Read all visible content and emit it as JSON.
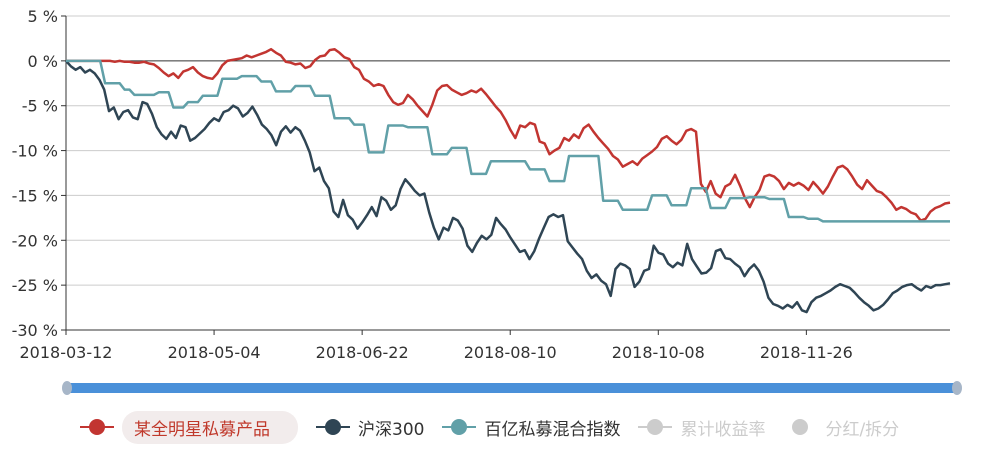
{
  "chart_data": {
    "type": "line",
    "y_tick_labels": [
      "5 %",
      "0 %",
      "-5 %",
      "-10 %",
      "-15 %",
      "-20 %",
      "-25 %",
      "-30 %"
    ],
    "y_ticks": [
      5,
      0,
      -5,
      -10,
      -15,
      -20,
      -25,
      -30
    ],
    "ylim": [
      -30,
      5
    ],
    "x_tick_labels": [
      "2018-03-12",
      "2018-05-04",
      "2018-06-22",
      "2018-08-10",
      "2018-10-08",
      "2018-11-26"
    ],
    "grid": true,
    "series": [
      {
        "name": "某全明星私募产品",
        "color": "#c23531",
        "values": [
          0,
          0,
          0,
          0,
          0,
          0,
          0,
          0,
          0,
          0,
          -0.1,
          0,
          -0.1,
          -0.1,
          -0.2,
          -0.2,
          -0.1,
          -0.3,
          -0.4,
          -0.8,
          -1.3,
          -1.7,
          -1.4,
          -1.9,
          -1.2,
          -1.0,
          -0.7,
          -1.3,
          -1.7,
          -1.9,
          -2.0,
          -1.4,
          -0.5,
          0,
          0.1,
          0.2,
          0.3,
          0.6,
          0.4,
          0.6,
          0.8,
          1.0,
          1.3,
          0.9,
          0.6,
          -0.1,
          -0.2,
          -0.4,
          -0.3,
          -0.8,
          -0.6,
          0.1,
          0.5,
          0.6,
          1.2,
          1.3,
          0.9,
          0.4,
          0.2,
          -0.7,
          -1.0,
          -2.0,
          -2.3,
          -2.8,
          -2.6,
          -2.8,
          -3.8,
          -4.6,
          -4.9,
          -4.7,
          -3.8,
          -4.3,
          -5.0,
          -5.6,
          -6.2,
          -4.9,
          -3.3,
          -2.8,
          -2.7,
          -3.2,
          -3.5,
          -3.8,
          -3.6,
          -3.3,
          -3.5,
          -3.1,
          -3.7,
          -4.4,
          -5.1,
          -5.7,
          -6.6,
          -7.7,
          -8.6,
          -7.2,
          -7.4,
          -6.9,
          -7.1,
          -9.0,
          -9.2,
          -10.4,
          -10.0,
          -9.7,
          -8.6,
          -8.9,
          -8.2,
          -8.6,
          -7.5,
          -7.1,
          -7.9,
          -8.6,
          -9.2,
          -9.8,
          -10.6,
          -11.0,
          -11.8,
          -11.5,
          -11.2,
          -11.6,
          -10.9,
          -10.5,
          -10.1,
          -9.6,
          -8.7,
          -8.4,
          -8.9,
          -9.3,
          -8.8,
          -7.8,
          -7.6,
          -7.9,
          -13.7,
          -14.6,
          -13.4,
          -14.8,
          -15.2,
          -14.0,
          -13.7,
          -12.7,
          -13.9,
          -15.3,
          -16.3,
          -15.2,
          -14.4,
          -12.9,
          -12.7,
          -12.9,
          -13.4,
          -14.3,
          -13.6,
          -13.9,
          -13.6,
          -13.9,
          -14.4,
          -13.5,
          -14.1,
          -14.8,
          -14.0,
          -12.9,
          -11.9,
          -11.7,
          -12.1,
          -12.9,
          -13.8,
          -14.3,
          -13.3,
          -13.9,
          -14.5,
          -14.7,
          -15.2,
          -15.8,
          -16.6,
          -16.3,
          -16.5,
          -16.9,
          -17.1,
          -17.8,
          -17.6,
          -16.8,
          -16.4,
          -16.2,
          -15.9,
          -15.8
        ]
      },
      {
        "name": "沪深300",
        "color": "#2f4554",
        "values": [
          0,
          -0.6,
          -1.0,
          -0.7,
          -1.3,
          -1.0,
          -1.4,
          -2.1,
          -3.2,
          -5.6,
          -5.2,
          -6.5,
          -5.7,
          -5.5,
          -6.3,
          -6.5,
          -4.6,
          -4.8,
          -5.9,
          -7.4,
          -8.2,
          -8.7,
          -7.9,
          -8.6,
          -7.2,
          -7.4,
          -8.9,
          -8.6,
          -8.1,
          -7.6,
          -6.9,
          -6.4,
          -6.7,
          -5.7,
          -5.5,
          -5.0,
          -5.3,
          -6.2,
          -5.8,
          -5.1,
          -6.0,
          -7.1,
          -7.6,
          -8.3,
          -9.4,
          -7.9,
          -7.3,
          -8.0,
          -7.4,
          -7.8,
          -8.9,
          -10.2,
          -12.3,
          -11.9,
          -13.4,
          -14.2,
          -16.8,
          -17.4,
          -15.5,
          -17.2,
          -17.7,
          -18.7,
          -18.0,
          -17.2,
          -16.3,
          -17.3,
          -15.2,
          -15.6,
          -16.6,
          -16.1,
          -14.3,
          -13.2,
          -13.8,
          -14.5,
          -15.0,
          -14.8,
          -16.9,
          -18.6,
          -19.9,
          -18.6,
          -18.9,
          -17.5,
          -17.8,
          -18.7,
          -20.6,
          -21.3,
          -20.3,
          -19.5,
          -19.9,
          -19.4,
          -17.5,
          -18.2,
          -18.8,
          -19.7,
          -20.5,
          -21.3,
          -21.1,
          -22.1,
          -21.2,
          -19.8,
          -18.6,
          -17.4,
          -17.1,
          -17.4,
          -17.2,
          -20.1,
          -20.8,
          -21.5,
          -22.1,
          -23.4,
          -24.2,
          -23.8,
          -24.5,
          -24.9,
          -26.2,
          -23.2,
          -22.6,
          -22.8,
          -23.2,
          -25.2,
          -24.6,
          -23.4,
          -23.2,
          -20.6,
          -21.4,
          -21.6,
          -22.6,
          -23.0,
          -22.5,
          -22.8,
          -20.4,
          -22.1,
          -22.9,
          -23.7,
          -23.6,
          -23.1,
          -21.2,
          -21.0,
          -22.0,
          -22.1,
          -22.6,
          -23.0,
          -24.0,
          -23.2,
          -22.7,
          -23.4,
          -24.6,
          -26.4,
          -27.1,
          -27.3,
          -27.6,
          -27.2,
          -27.5,
          -26.9,
          -27.8,
          -28.0,
          -26.9,
          -26.4,
          -26.2,
          -25.9,
          -25.6,
          -25.2,
          -24.9,
          -25.1,
          -25.3,
          -25.8,
          -26.4,
          -26.9,
          -27.3,
          -27.8,
          -27.6,
          -27.2,
          -26.6,
          -25.9,
          -25.6,
          -25.2,
          -25.0,
          -24.9,
          -25.3,
          -25.6,
          -25.1,
          -25.3,
          -25.0,
          -25.0,
          -24.9,
          -24.8
        ]
      },
      {
        "name": "百亿私募混合指数",
        "color": "#61a0a8",
        "values": [
          0,
          0,
          0,
          0,
          0,
          0,
          0,
          0,
          -2.5,
          -2.5,
          -2.5,
          -2.5,
          -3.2,
          -3.2,
          -3.8,
          -3.8,
          -3.8,
          -3.8,
          -3.8,
          -3.5,
          -3.5,
          -3.5,
          -5.2,
          -5.2,
          -5.2,
          -4.6,
          -4.6,
          -4.6,
          -3.9,
          -3.9,
          -3.9,
          -3.9,
          -2.0,
          -2.0,
          -2.0,
          -2.0,
          -1.7,
          -1.7,
          -1.7,
          -1.7,
          -2.3,
          -2.3,
          -2.3,
          -3.4,
          -3.4,
          -3.4,
          -3.4,
          -2.8,
          -2.8,
          -2.8,
          -2.8,
          -3.9,
          -3.9,
          -3.9,
          -3.9,
          -6.4,
          -6.4,
          -6.4,
          -6.4,
          -7.1,
          -7.1,
          -7.1,
          -10.2,
          -10.2,
          -10.2,
          -10.2,
          -7.2,
          -7.2,
          -7.2,
          -7.2,
          -7.4,
          -7.4,
          -7.4,
          -7.4,
          -7.4,
          -10.4,
          -10.4,
          -10.4,
          -10.4,
          -9.7,
          -9.7,
          -9.7,
          -9.7,
          -12.6,
          -12.6,
          -12.6,
          -12.6,
          -11.2,
          -11.2,
          -11.2,
          -11.2,
          -11.2,
          -11.2,
          -11.2,
          -11.2,
          -12.1,
          -12.1,
          -12.1,
          -12.1,
          -13.4,
          -13.4,
          -13.4,
          -13.4,
          -10.6,
          -10.6,
          -10.6,
          -10.6,
          -10.6,
          -10.6,
          -10.6,
          -15.6,
          -15.6,
          -15.6,
          -15.6,
          -16.6,
          -16.6,
          -16.6,
          -16.6,
          -16.6,
          -16.6,
          -15.0,
          -15.0,
          -15.0,
          -15.0,
          -16.1,
          -16.1,
          -16.1,
          -16.1,
          -14.2,
          -14.2,
          -14.2,
          -14.2,
          -16.4,
          -16.4,
          -16.4,
          -16.4,
          -15.3,
          -15.3,
          -15.3,
          -15.3,
          -15.2,
          -15.2,
          -15.2,
          -15.2,
          -15.4,
          -15.4,
          -15.4,
          -15.4,
          -17.4,
          -17.4,
          -17.4,
          -17.4,
          -17.6,
          -17.6,
          -17.6,
          -17.9,
          -17.9,
          -17.9,
          -17.9,
          -17.9,
          -17.9,
          -17.9,
          -17.9,
          -17.9,
          -17.9,
          -17.9,
          -17.9,
          -17.9,
          -17.9,
          -17.9,
          -17.9,
          -17.9,
          -17.9,
          -17.9,
          -17.9,
          -17.9,
          -17.9,
          -17.9,
          -17.9,
          -17.9,
          -17.9,
          -17.9
        ]
      }
    ]
  },
  "legend": [
    {
      "label": "某全明星私募产品",
      "color": "#c23531",
      "state": "highlight"
    },
    {
      "label": "沪深300",
      "color": "#2f4554",
      "state": "on"
    },
    {
      "label": "百亿私募混合指数",
      "color": "#61a0a8",
      "state": "on"
    },
    {
      "label": "累计收益率",
      "color": "#cccccc",
      "state": "off"
    },
    {
      "label": "分红/拆分",
      "color": "#cccccc",
      "state": "off"
    }
  ],
  "colors": {
    "axis": "#333333",
    "grid": "#cccccc",
    "slider": "#4a90d9"
  }
}
